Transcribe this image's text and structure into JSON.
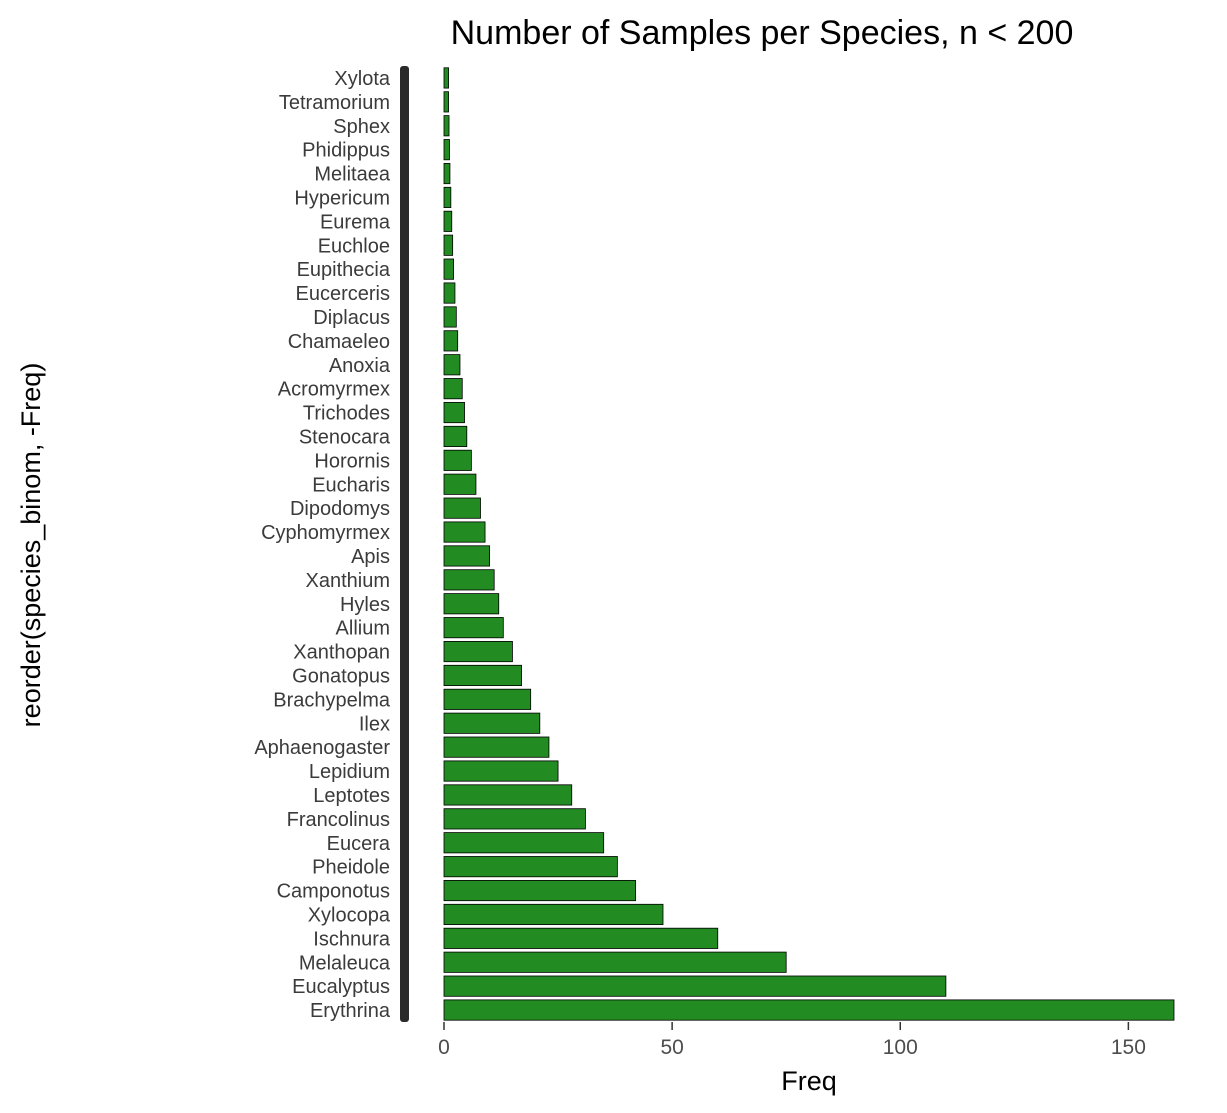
{
  "chart_data": {
    "type": "bar",
    "orientation": "horizontal",
    "title": "Number of Samples per Species, n < 200",
    "xlabel": "Freq",
    "ylabel": "reorder(species_binom, -Freq)",
    "xlim": [
      0,
      160
    ],
    "xticks": [
      0,
      50,
      100,
      150
    ],
    "grid": false,
    "legend": "none",
    "bar_color": "#228b22",
    "bar_edge_color": "#000000",
    "categories": [
      "Erythrina",
      "Eucalyptus",
      "Melaleuca",
      "Ischnura",
      "Xylocopa",
      "Camponotus",
      "Pheidole",
      "Eucera",
      "Francolinus",
      "Leptotes",
      "Lepidium",
      "Aphaenogaster",
      "Ilex",
      "Brachypelma",
      "Gonatopus",
      "Xanthopan",
      "Allium",
      "Hyles",
      "Xanthium",
      "Apis",
      "Cyphomyrmex",
      "Dipodomys",
      "Eucharis",
      "Horornis",
      "Stenocara",
      "Trichodes",
      "Acromyrmex",
      "Anoxia",
      "Chamaeleo",
      "Diplacus",
      "Eucerceris",
      "Eupithecia",
      "Euchloe",
      "Eurema",
      "Hypericum",
      "Melitaea",
      "Phidippus",
      "Sphex",
      "Tetramorium",
      "Xylota"
    ],
    "values": [
      160,
      110,
      75,
      60,
      48,
      42,
      38,
      35,
      31,
      28,
      25,
      23,
      21,
      19,
      17,
      15,
      13,
      12,
      11,
      10,
      9,
      8,
      7,
      6,
      5,
      4.5,
      4,
      3.5,
      3,
      2.7,
      2.4,
      2.1,
      1.9,
      1.7,
      1.5,
      1.3,
      1.2,
      1.1,
      1,
      1
    ]
  }
}
